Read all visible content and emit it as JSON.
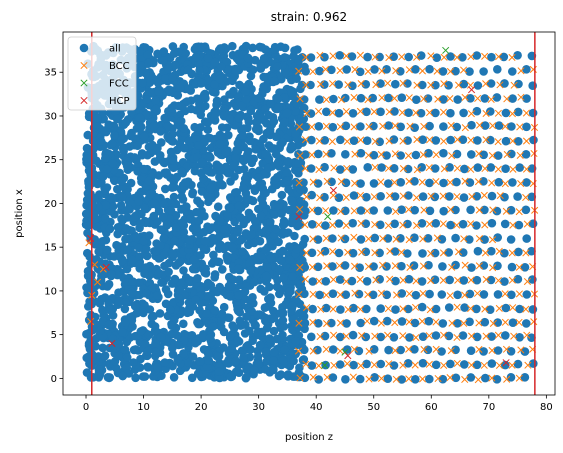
{
  "chart_data": {
    "type": "scatter",
    "title": "strain: 0.962",
    "xlabel": "position z",
    "ylabel": "position x",
    "xlim": [
      -4,
      81.5
    ],
    "ylim": [
      -1.9,
      39.6
    ],
    "xticks": [
      0,
      10,
      20,
      30,
      40,
      50,
      60,
      70,
      80
    ],
    "yticks": [
      0,
      5,
      10,
      15,
      20,
      25,
      30,
      35
    ],
    "grid": false,
    "legend_position": "top-left",
    "vlines": [
      {
        "x": 1.0,
        "color": "#d62728"
      },
      {
        "x": 78.0,
        "color": "#d62728"
      }
    ],
    "series": [
      {
        "name": "all",
        "marker": "circle",
        "color": "#1f77b4",
        "regions": [
          {
            "kind": "amorphous",
            "z": [
              0,
              38
            ],
            "x": [
              0,
              38
            ],
            "point_count": 2600
          },
          {
            "kind": "lattice",
            "z": [
              38,
              78
            ],
            "x": [
              0,
              38
            ],
            "spacing_z": 2.4,
            "spacing_x": 1.6
          }
        ]
      },
      {
        "name": "BCC",
        "marker": "x",
        "color": "#ff7f0e",
        "regions": [
          {
            "kind": "lattice",
            "z": [
              37,
              78
            ],
            "x": [
              0,
              38
            ],
            "spacing_z": 2.4,
            "spacing_x": 1.6
          }
        ],
        "points": [
          [
            0.5,
            15.5
          ],
          [
            1.5,
            13.0
          ],
          [
            2.0,
            11.0
          ],
          [
            1.0,
            9.5
          ],
          [
            0.8,
            6.5
          ],
          [
            3.0,
            12.5
          ]
        ]
      },
      {
        "name": "FCC",
        "marker": "x",
        "color": "#2ca02c",
        "points": [
          [
            62.5,
            37.5
          ],
          [
            42.0,
            18.5
          ],
          [
            41.5,
            1.5
          ],
          [
            45.0,
            3.0
          ]
        ]
      },
      {
        "name": "HCP",
        "marker": "x",
        "color": "#d62728",
        "points": [
          [
            67.0,
            33.0
          ],
          [
            37.0,
            18.5
          ],
          [
            43.0,
            21.5
          ],
          [
            3.5,
            12.7
          ],
          [
            4.5,
            4.0
          ],
          [
            45.5,
            2.6
          ],
          [
            73.0,
            1.8
          ],
          [
            0.8,
            16.0
          ]
        ]
      }
    ]
  }
}
